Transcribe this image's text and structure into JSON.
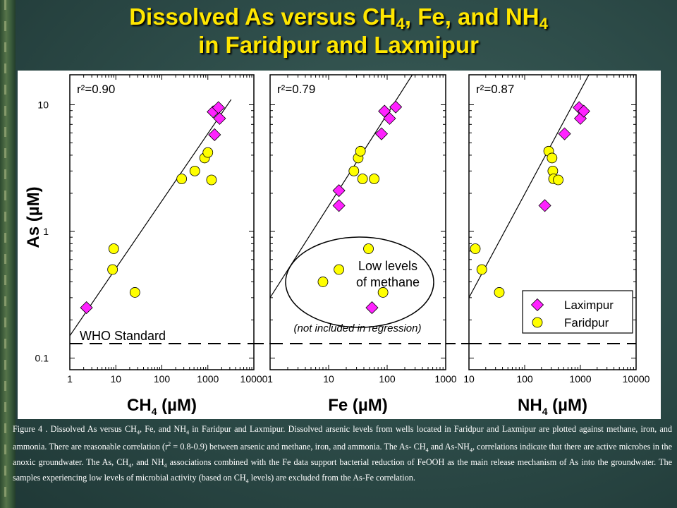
{
  "slide": {
    "title_line1_main": "Dissolved As versus CH",
    "title_line1_sub": "4",
    "title_line1_rest": ", Fe, and NH",
    "title_line1_sub2": "4",
    "title_line2": "in Faridpur and Laxmipur"
  },
  "chart_data": {
    "type": "scatter",
    "y_axis": {
      "label": "As (µM)",
      "scale": "log",
      "ylim": [
        0.1,
        20
      ],
      "ticks": [
        0.1,
        1,
        10
      ],
      "tick_labels": [
        "0.1",
        "1",
        "10"
      ]
    },
    "reference_line": {
      "label": "WHO Standard",
      "y": 0.13
    },
    "legend": {
      "placement": "bottom-right",
      "entries": [
        {
          "name": "Laximpur",
          "marker": "diamond",
          "color": "#ff22ff"
        },
        {
          "name": "Faridpur",
          "marker": "circle",
          "color": "#ffff00"
        }
      ]
    },
    "panels": [
      {
        "id": "ch4",
        "xlabel_main": "CH",
        "xlabel_sub": "4",
        "xlabel_unit": " (µM)",
        "x_scale": "log",
        "xlim": [
          1,
          10000
        ],
        "x_ticks": [
          1,
          10,
          100,
          1000,
          10000
        ],
        "x_tick_labels": [
          "1",
          "10",
          "100",
          "1000",
          "10000"
        ],
        "r2_label": "r²=0.90",
        "r2": 0.9,
        "fit_line": [
          [
            1,
            0.15
          ],
          [
            3200,
            11
          ]
        ],
        "series": [
          {
            "name": "Laximpur",
            "points": [
              [
                2.3,
                0.25
              ],
              [
                1400,
                5.8
              ],
              [
                1300,
                8.8
              ],
              [
                1700,
                9.5
              ],
              [
                1800,
                7.8
              ]
            ]
          },
          {
            "name": "Faridpur",
            "points": [
              [
                8.5,
                0.5
              ],
              [
                9.0,
                0.73
              ],
              [
                26,
                0.33
              ],
              [
                270,
                2.6
              ],
              [
                520,
                3.0
              ],
              [
                850,
                3.8
              ],
              [
                1000,
                4.2
              ],
              [
                1200,
                2.55
              ]
            ]
          }
        ]
      },
      {
        "id": "fe",
        "xlabel_main": "Fe",
        "xlabel_sub": "",
        "xlabel_unit": " (µM)",
        "x_scale": "log",
        "xlim": [
          1,
          1000
        ],
        "x_ticks": [
          1,
          10,
          100,
          1000
        ],
        "x_tick_labels": [
          "1",
          "10",
          "100",
          "1000"
        ],
        "r2_label": "r²=0.79",
        "r2": 0.79,
        "fit_line": [
          [
            1,
            0.3
          ],
          [
            330,
            20
          ]
        ],
        "excluded_note": "Low levels of methane",
        "excluded_caption": "(not included in regression)",
        "series": [
          {
            "name": "Laximpur",
            "points": [
              [
                15,
                2.1
              ],
              [
                15,
                1.6
              ],
              [
                80,
                5.9
              ],
              [
                90,
                8.9
              ],
              [
                110,
                7.8
              ],
              [
                140,
                9.6
              ],
              [
                55,
                0.25
              ]
            ]
          },
          {
            "name": "Faridpur",
            "points": [
              [
                27,
                3.0
              ],
              [
                32,
                3.8
              ],
              [
                35,
                4.3
              ],
              [
                38,
                2.6
              ],
              [
                60,
                2.6
              ],
              [
                8,
                0.4
              ],
              [
                15,
                0.5
              ],
              [
                48,
                0.73
              ],
              [
                85,
                0.33
              ]
            ]
          }
        ]
      },
      {
        "id": "nh4",
        "xlabel_main": "NH",
        "xlabel_sub": "4",
        "xlabel_unit": " (µM)",
        "x_scale": "log",
        "xlim": [
          10,
          10000
        ],
        "x_ticks": [
          10,
          100,
          1000,
          10000
        ],
        "x_tick_labels": [
          "10",
          "100",
          "1000",
          "10000"
        ],
        "r2_label": "r²=0.87",
        "r2": 0.87,
        "fit_line": [
          [
            10,
            0.3
          ],
          [
            1700,
            20
          ]
        ],
        "series": [
          {
            "name": "Laximpur",
            "points": [
              [
                230,
                1.6
              ],
              [
                520,
                5.9
              ],
              [
                950,
                9.5
              ],
              [
                1000,
                7.8
              ],
              [
                1150,
                8.9
              ]
            ]
          },
          {
            "name": "Faridpur",
            "points": [
              [
                13,
                0.73
              ],
              [
                17,
                0.5
              ],
              [
                35,
                0.33
              ],
              [
                270,
                4.3
              ],
              [
                310,
                3.8
              ],
              [
                320,
                3.0
              ],
              [
                330,
                2.6
              ],
              [
                400,
                2.55
              ]
            ]
          }
        ]
      }
    ]
  },
  "caption": {
    "figure_label": "Figure 4 .",
    "t1": "Dissolved As versus CH",
    "s1": "4",
    "t2": ", Fe, and NH",
    "s2": "4",
    "t3": " in Faridpur and Laxmipur.  Dissolved arsenic levels from wells located in Faridpur and Laxmipur are plotted against methane, iron, and ammonia.  There are reasonable correlation (r",
    "sup1": "2",
    "t4": " = 0.8-0.9) between arsenic and methane, iron, and ammonia.   The As- CH",
    "s3": "4",
    "t5": " and As-NH",
    "s4": "4",
    "t6": ",  correlations indicate that there are active microbes in the anoxic groundwater.  The As, CH",
    "s5": "4",
    "t7": ",  and NH",
    "s6": "4",
    "t8": " associations combined with the Fe data support bacterial reduction of FeOOH as the main release mechanism of As into the groundwater.  The samples experiencing  low levels of microbial  activity (based on CH",
    "s7": "4",
    "t9": " levels) are excluded from the As-Fe correlation."
  }
}
